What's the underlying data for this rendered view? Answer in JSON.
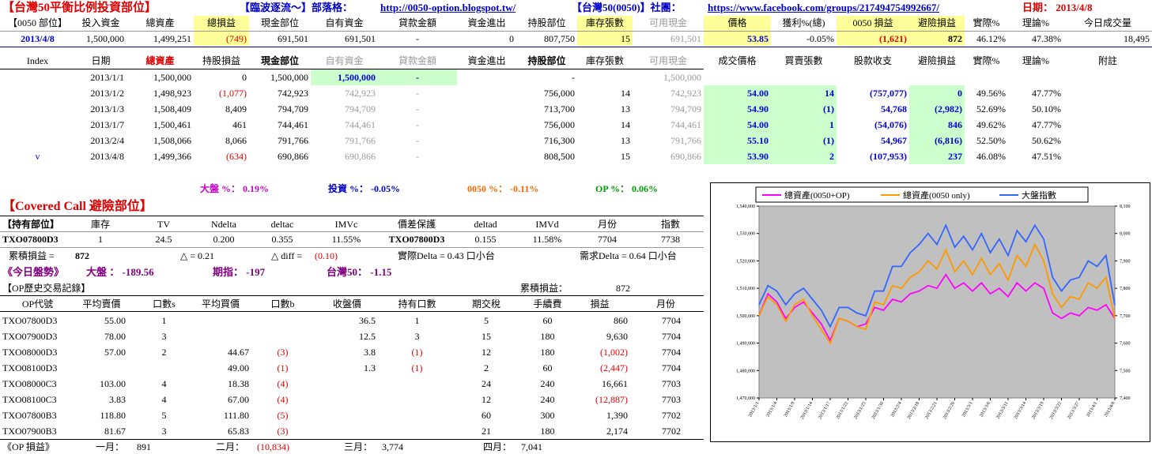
{
  "header": {
    "title": "【台灣50平衡比例投資部位】",
    "blog_label": "【臨波逐流～】部落格：",
    "blog_url": "http://0050-option.blogspot.tw/",
    "group_label": "【台灣50(0050)】社團：",
    "group_url": "https://www.facebook.com/groups/217494754992667/",
    "date": "日期： 2013/4/8"
  },
  "status": {
    "columns": [
      "【0050 部位】",
      "投入資金",
      "總資產",
      "總損益",
      "現金部位",
      "自有資金",
      "貸款金額",
      "資金進出",
      "持股部位",
      "庫存張數",
      "可用現金",
      "價格",
      "獲利%(總)",
      "0050 損益",
      "避險損益",
      "實際%",
      "理論%",
      "今日成交量"
    ],
    "row": [
      "2013/4/8",
      "1,500,000",
      "1,499,251",
      "(749)",
      "691,501",
      "691,501",
      "-",
      "0",
      "807,750",
      "15",
      "691,501",
      "53.85",
      "-0.05%",
      "(1,621)",
      "872",
      "46.12%",
      "47.38%",
      "18,495"
    ]
  },
  "history": {
    "columns": [
      "Index",
      "日期",
      "總資產",
      "持股損益",
      "現金部位",
      "自有資金",
      "貸款金額",
      "資金進出",
      "持股部位",
      "庫存張數",
      "可用現金",
      "成交價格",
      "買賣張數",
      "股款收支",
      "避險損益",
      "實際%",
      "理論%",
      "附註"
    ],
    "rows": [
      [
        null,
        "2013/1/1",
        "1,500,000",
        "0",
        "1,500,000",
        "1,500,000",
        "-",
        null,
        "-",
        null,
        "1,500,000",
        null,
        null,
        null,
        null,
        null,
        null,
        null
      ],
      [
        null,
        "2013/1/2",
        "1,498,923",
        "(1,077)",
        "742,923",
        "742,923",
        "-",
        null,
        "756,000",
        "14",
        "742,923",
        "54.00",
        "14",
        "(757,077)",
        "0",
        "49.56%",
        "47.77%",
        null
      ],
      [
        null,
        "2013/1/3",
        "1,508,409",
        "8,409",
        "794,709",
        "794,709",
        "-",
        null,
        "713,700",
        "13",
        "794,709",
        "54.90",
        "(1)",
        "54,768",
        "(2,982)",
        "52.69%",
        "50.10%",
        null
      ],
      [
        null,
        "2013/1/7",
        "1,500,461",
        "461",
        "744,461",
        "744,461",
        "-",
        null,
        "756,000",
        "14",
        "744,461",
        "54.00",
        "1",
        "(54,076)",
        "846",
        "49.62%",
        "47.77%",
        null
      ],
      [
        null,
        "2013/2/4",
        "1,508,066",
        "8,066",
        "791,766",
        "791,766",
        "-",
        null,
        "716,300",
        "13",
        "791,766",
        "55.10",
        "(1)",
        "54,967",
        "(6,816)",
        "52.50%",
        "50.62%",
        null
      ],
      [
        "v",
        "2013/4/8",
        "1,499,366",
        "(634)",
        "690,866",
        "690,866",
        "-",
        null,
        "808,500",
        "15",
        "690,866",
        "53.90",
        "2",
        "(107,953)",
        "237",
        "46.08%",
        "47.51%",
        null
      ]
    ]
  },
  "ratios": [
    "大盤 %：  0.19%",
    "投資 %：  -0.05%",
    "0050 %：  -0.11%",
    "OP %：  0.06%"
  ],
  "covered_call": {
    "title": "【Covered Call 避險部位】",
    "columns": [
      "【持有部位】",
      "庫存",
      "TV",
      "Ndelta",
      "deltac",
      "IMVc",
      "價差保護",
      "deltad",
      "IMVd",
      "月份",
      "指數"
    ],
    "row": [
      "TXO07800D3",
      "1",
      "24.5",
      "0.200",
      "0.355",
      "11.55%",
      "TXO07800D3",
      "0.155",
      "11.58%",
      "7704",
      "7738"
    ],
    "cumulative_label": "累積損益 =",
    "cumulative_value": "872",
    "delta": "△ = 0.21",
    "delta_diff_label": "△ diff =",
    "delta_diff_value": "(0.10)",
    "actual_delta": "實際Delta = 0.43 口小台",
    "required_delta": "需求Delta = 0.64 口小台",
    "market": {
      "label": "《今日盤勢》",
      "index": "大盤 ：  -189.56",
      "futures": "期指：  -197",
      "tw50": "台灣50：  -1.15"
    }
  },
  "op_history": {
    "title": "【OP歷史交易記錄】",
    "cumulative_label": "累積損益：",
    "cumulative_value": "872",
    "columns": [
      "OP代號",
      "平均賣價",
      "口數s",
      "平均買價",
      "口數b",
      "收盤價",
      "持有口數",
      "期交稅",
      "手續費",
      "損益",
      "月份"
    ],
    "rows": [
      [
        "TXO07800D3",
        "55.00",
        "1",
        null,
        null,
        "36.5",
        "1",
        "5",
        "60",
        "860",
        "7704"
      ],
      [
        "TXO07900D3",
        "78.00",
        "3",
        null,
        null,
        "12.5",
        "3",
        "15",
        "180",
        "9,630",
        "7704"
      ],
      [
        "TXO08000D3",
        "57.00",
        "2",
        "44.67",
        "(3)",
        "3.8",
        "(1)",
        "12",
        "180",
        "(1,002)",
        "7704"
      ],
      [
        "TXO08100D3",
        null,
        null,
        "49.00",
        "(1)",
        "1.3",
        "(1)",
        "2",
        "60",
        "(2,447)",
        "7704"
      ],
      [
        "TXO08000C3",
        "103.00",
        "4",
        "18.38",
        "(4)",
        null,
        null,
        "24",
        "240",
        "16,661",
        "7703"
      ],
      [
        "TXO08100C3",
        "3.83",
        "4",
        "67.00",
        "(4)",
        null,
        null,
        "12",
        "240",
        "(12,887)",
        "7703"
      ],
      [
        "TXO07800B3",
        "118.80",
        "5",
        "111.80",
        "(5)",
        null,
        null,
        "60",
        "300",
        "1,390",
        "7702"
      ],
      [
        "TXO07900B3",
        "81.67",
        "3",
        "65.83",
        "(3)",
        null,
        null,
        "21",
        "180",
        "2,174",
        "7702"
      ]
    ]
  },
  "op_pnl": {
    "label": "《OP 損益》",
    "months": [
      {
        "label": "一月：",
        "value": "891"
      },
      {
        "label": "二月：",
        "value": "(10,834)"
      },
      {
        "label": "三月：",
        "value": "3,774"
      },
      {
        "label": "四月：",
        "value": "7,041"
      }
    ]
  },
  "chart_data": {
    "type": "line",
    "categories": [
      "2013/1/1",
      null,
      "2013/1/4",
      null,
      "2013/1/9",
      null,
      "2013/1/14",
      null,
      "2013/1/17",
      null,
      "2013/1/22",
      null,
      "2013/1/25",
      null,
      "2013/1/30",
      null,
      "2013/2/4",
      null,
      "2013/2/18",
      null,
      "2013/2/21",
      null,
      "2013/2/26",
      null,
      "2013/3/1",
      null,
      "2013/3/6",
      null,
      "2013/3/11",
      null,
      "2013/3/14",
      null,
      "2013/3/19",
      null,
      "2013/3/22",
      null,
      "2013/3/27",
      null,
      "2013/4/1",
      null,
      "2013/4/8"
    ],
    "series": [
      {
        "name": "總資產(0050+OP)",
        "color": "#ff00ff",
        "values": [
          1500000,
          1508000,
          1505000,
          1499000,
          1503000,
          1505000,
          1501000,
          1497000,
          1491000,
          1499000,
          1498000,
          1496000,
          1497000,
          1503000,
          1502000,
          1506000,
          1505000,
          1508000,
          1509000,
          1511000,
          1510000,
          1515000,
          1510000,
          1512000,
          1509000,
          1512000,
          1508000,
          1510000,
          1507000,
          1512000,
          1509000,
          1512000,
          1510000,
          1501000,
          1499000,
          1501000,
          1500000,
          1503000,
          1502000,
          1504000,
          1499000
        ]
      },
      {
        "name": "總資產(0050 only)",
        "color": "#ff9900",
        "values": [
          1500000,
          1507000,
          1504000,
          1498000,
          1504000,
          1506000,
          1500000,
          1495000,
          1490000,
          1499000,
          1498000,
          1496000,
          1495000,
          1505000,
          1504000,
          1511000,
          1510000,
          1514000,
          1516000,
          1520000,
          1517000,
          1524000,
          1516000,
          1520000,
          1515000,
          1521000,
          1515000,
          1519000,
          1513000,
          1522000,
          1518000,
          1526000,
          1520000,
          1508000,
          1503000,
          1507000,
          1506000,
          1512000,
          1510000,
          1514000,
          1499000
        ]
      },
      {
        "name": "大盤指數",
        "color": "#3366ff",
        "axis": "y2",
        "values": [
          7740,
          7810,
          7790,
          7740,
          7780,
          7800,
          7760,
          7720,
          7660,
          7730,
          7730,
          7710,
          7700,
          7790,
          7790,
          7880,
          7880,
          7930,
          7960,
          8000,
          7960,
          8030,
          7950,
          7990,
          7940,
          8000,
          7930,
          7980,
          7920,
          8010,
          7970,
          8030,
          7980,
          7840,
          7790,
          7830,
          7840,
          7900,
          7880,
          7920,
          7738
        ]
      }
    ],
    "ylim": [
      1470000,
      1540000
    ],
    "yticks": [
      {
        "value": 1470000,
        "label": "1,470,000"
      },
      {
        "value": 1480000,
        "label": "1,480,000"
      },
      {
        "value": 1490000,
        "label": "1,490,000"
      },
      {
        "value": 1500000,
        "label": "1,500,000"
      },
      {
        "value": 1510000,
        "label": "1,510,000"
      },
      {
        "value": 1520000,
        "label": "1,520,000"
      },
      {
        "value": 1530000,
        "label": "1,530,000"
      },
      {
        "value": 1540000,
        "label": "1,540,000"
      }
    ],
    "y2lim": [
      7400,
      8100
    ],
    "y2ticks": [
      {
        "value": 7400,
        "label": "7,400"
      },
      {
        "value": 7500,
        "label": "7,500"
      },
      {
        "value": 7600,
        "label": "7,600"
      },
      {
        "value": 7700,
        "label": "7,700"
      },
      {
        "value": 7800,
        "label": "7,800"
      },
      {
        "value": 7900,
        "label": "7,900"
      },
      {
        "value": 8000,
        "label": "8,000"
      },
      {
        "value": 8100,
        "label": "8,100"
      }
    ],
    "legend": "top",
    "grid": false
  }
}
